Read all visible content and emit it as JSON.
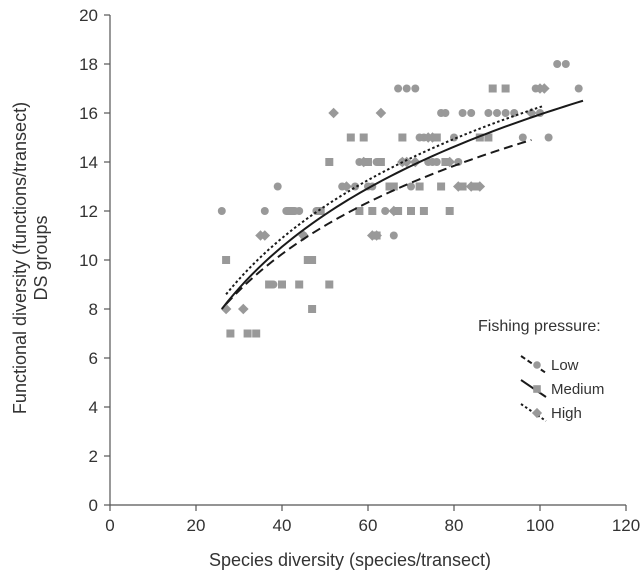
{
  "chart_data": {
    "type": "scatter",
    "xlabel": "Species diversity (species/transect)",
    "ylabel": "Functional diversity (functions/transect)",
    "ylabel_line2": "DS groups",
    "xlim": [
      0,
      120
    ],
    "ylim": [
      0,
      20
    ],
    "x_ticks": [
      0,
      20,
      40,
      60,
      80,
      100,
      120
    ],
    "y_ticks": [
      0,
      2,
      4,
      6,
      8,
      10,
      12,
      14,
      16,
      18,
      20
    ],
    "grid": false,
    "legend": {
      "title": "Fishing pressure:",
      "placement": "bottom-right",
      "entries": [
        "Low",
        "Medium",
        "High"
      ]
    },
    "colors": {
      "points": "#999999",
      "lines": "#1a1a1a",
      "axes": "#555555"
    },
    "series": [
      {
        "name": "Low",
        "marker": "circle",
        "line_style": "dashed",
        "fit": {
          "x_start": 27,
          "x_end": 98,
          "y_start": 8.2,
          "y_end": 14.9
        },
        "points": [
          [
            26,
            12
          ],
          [
            36,
            12
          ],
          [
            38,
            9
          ],
          [
            39,
            13
          ],
          [
            41,
            12
          ],
          [
            43,
            12
          ],
          [
            44,
            12
          ],
          [
            45,
            11
          ],
          [
            48,
            12
          ],
          [
            54,
            13
          ],
          [
            57,
            13
          ],
          [
            58,
            14
          ],
          [
            60,
            13
          ],
          [
            61,
            13
          ],
          [
            62,
            14
          ],
          [
            64,
            12
          ],
          [
            65,
            13
          ],
          [
            66,
            11
          ],
          [
            67,
            17
          ],
          [
            68,
            14
          ],
          [
            69,
            17
          ],
          [
            70,
            13
          ],
          [
            71,
            17
          ],
          [
            72,
            15
          ],
          [
            74,
            14
          ],
          [
            75,
            14
          ],
          [
            76,
            14
          ],
          [
            77,
            16
          ],
          [
            78,
            16
          ],
          [
            80,
            15
          ],
          [
            81,
            14
          ],
          [
            82,
            16
          ],
          [
            84,
            16
          ],
          [
            86,
            15
          ],
          [
            88,
            16
          ],
          [
            90,
            16
          ],
          [
            92,
            16
          ],
          [
            94,
            16
          ],
          [
            96,
            15
          ],
          [
            99,
            17
          ],
          [
            100,
            16
          ],
          [
            102,
            15
          ],
          [
            104,
            18
          ],
          [
            106,
            18
          ],
          [
            109,
            17
          ],
          [
            73,
            15
          ]
        ]
      },
      {
        "name": "Medium",
        "marker": "square",
        "line_style": "solid",
        "fit": {
          "x_start": 26,
          "x_end": 110,
          "y_start": 8.0,
          "y_end": 16.5
        },
        "points": [
          [
            27,
            10
          ],
          [
            28,
            7
          ],
          [
            32,
            7
          ],
          [
            34,
            7
          ],
          [
            37,
            9
          ],
          [
            40,
            9
          ],
          [
            42,
            12
          ],
          [
            44,
            9
          ],
          [
            46,
            10
          ],
          [
            47,
            8
          ],
          [
            49,
            12
          ],
          [
            51,
            14
          ],
          [
            51,
            9
          ],
          [
            56,
            15
          ],
          [
            59,
            15
          ],
          [
            60,
            14
          ],
          [
            61,
            12
          ],
          [
            62,
            11
          ],
          [
            63,
            14
          ],
          [
            65,
            13
          ],
          [
            66,
            13
          ],
          [
            67,
            12
          ],
          [
            68,
            15
          ],
          [
            70,
            12
          ],
          [
            72,
            13
          ],
          [
            73,
            12
          ],
          [
            76,
            15
          ],
          [
            77,
            13
          ],
          [
            78,
            14
          ],
          [
            79,
            12
          ],
          [
            82,
            13
          ],
          [
            85,
            13
          ],
          [
            86,
            15
          ],
          [
            88,
            15
          ],
          [
            89,
            17
          ],
          [
            92,
            17
          ],
          [
            58,
            12
          ],
          [
            47,
            10
          ]
        ]
      },
      {
        "name": "High",
        "marker": "diamond",
        "line_style": "dotted",
        "fit": {
          "x_start": 27,
          "x_end": 101,
          "y_start": 8.6,
          "y_end": 16.3
        },
        "points": [
          [
            27,
            8
          ],
          [
            31,
            8
          ],
          [
            35,
            11
          ],
          [
            36,
            11
          ],
          [
            45,
            11
          ],
          [
            52,
            16
          ],
          [
            55,
            13
          ],
          [
            59,
            14
          ],
          [
            61,
            11
          ],
          [
            62,
            11
          ],
          [
            63,
            16
          ],
          [
            66,
            12
          ],
          [
            69,
            14
          ],
          [
            71,
            14
          ],
          [
            74,
            15
          ],
          [
            79,
            14
          ],
          [
            81,
            13
          ],
          [
            84,
            13
          ],
          [
            86,
            13
          ],
          [
            98,
            16
          ],
          [
            100,
            17
          ],
          [
            101,
            17
          ],
          [
            68,
            14
          ],
          [
            75,
            15
          ]
        ]
      }
    ]
  }
}
